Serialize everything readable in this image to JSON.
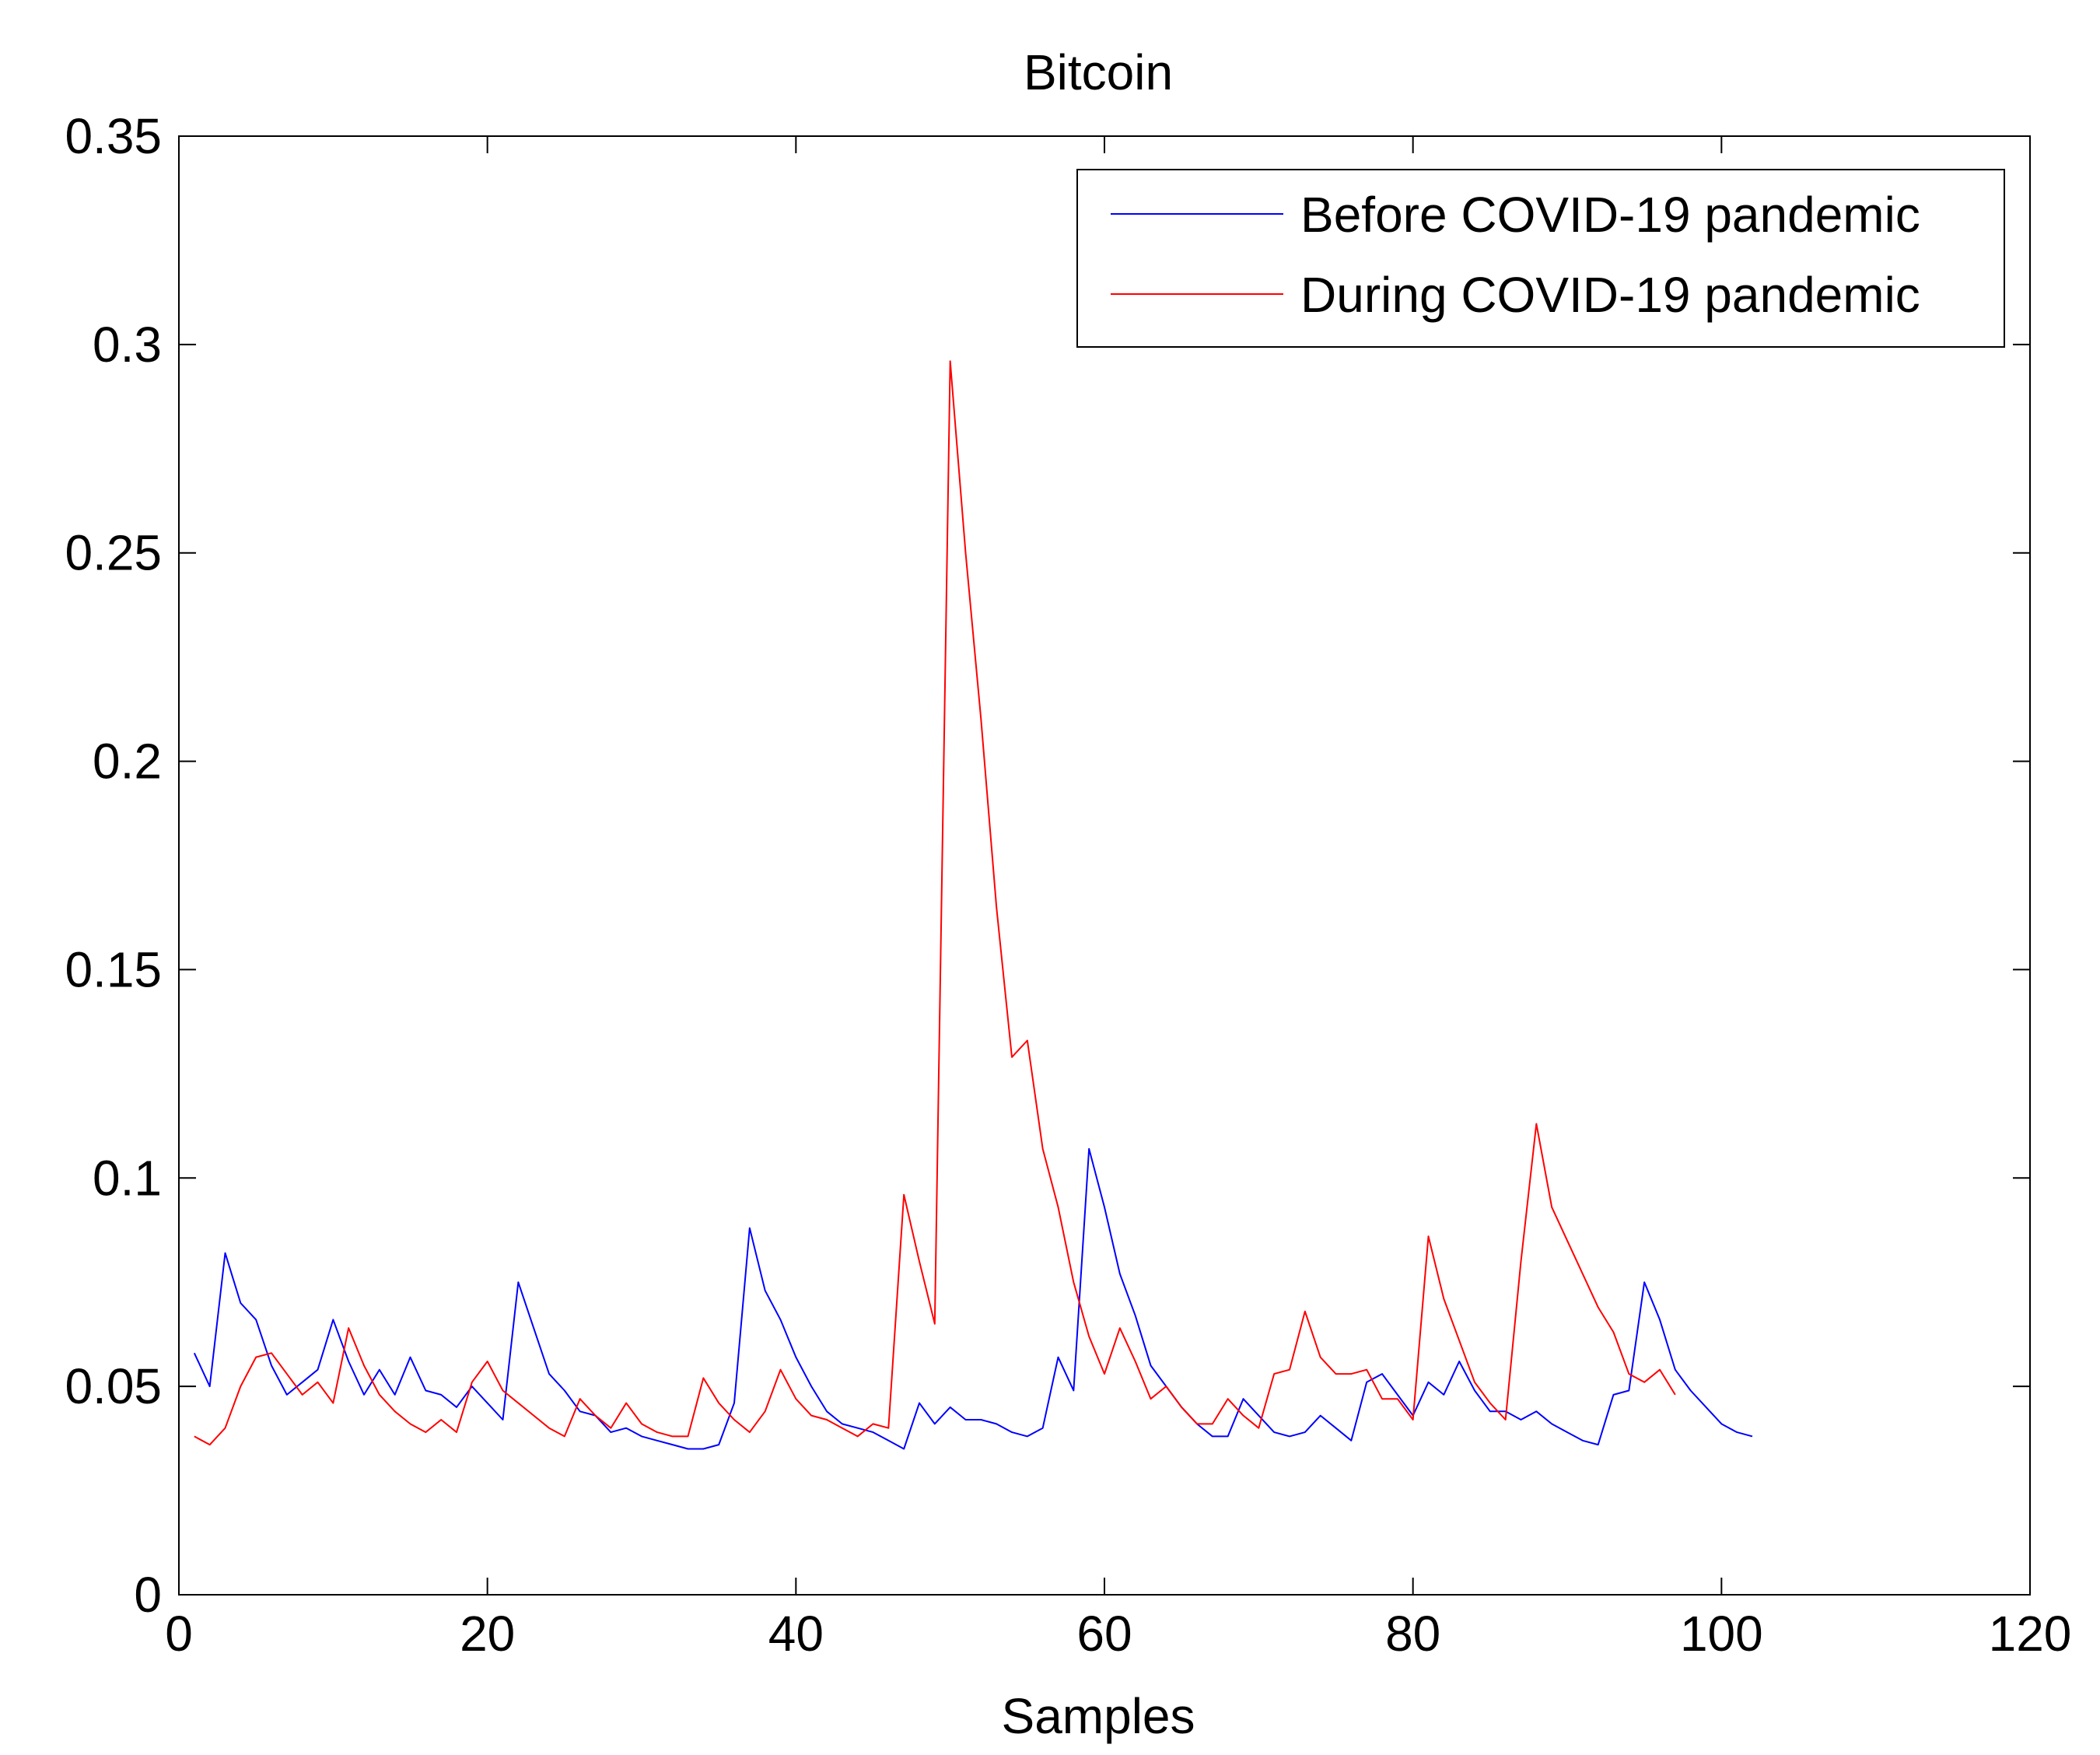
{
  "chart_data": {
    "type": "line",
    "title": "Bitcoin",
    "xlabel": "Samples",
    "ylabel": "",
    "xlim": [
      0,
      120
    ],
    "ylim": [
      0,
      0.35
    ],
    "xticks": [
      0,
      20,
      40,
      60,
      80,
      100,
      120
    ],
    "yticks": [
      0,
      0.05,
      0.1,
      0.15,
      0.2,
      0.25,
      0.3,
      0.35
    ],
    "xtick_labels": [
      "0",
      "20",
      "40",
      "60",
      "80",
      "100",
      "120"
    ],
    "ytick_labels": [
      "0",
      "0.05",
      "0.1",
      "0.15",
      "0.2",
      "0.25",
      "0.3",
      "0.35"
    ],
    "grid": false,
    "legend_position": "top-right",
    "series": [
      {
        "name": "Before COVID-19 pandemic",
        "color": "#0000ff",
        "x_start": 1,
        "values": [
          0.058,
          0.05,
          0.082,
          0.07,
          0.066,
          0.055,
          0.048,
          0.051,
          0.054,
          0.066,
          0.056,
          0.048,
          0.054,
          0.048,
          0.057,
          0.049,
          0.048,
          0.045,
          0.05,
          0.046,
          0.042,
          0.075,
          0.064,
          0.053,
          0.049,
          0.044,
          0.043,
          0.039,
          0.04,
          0.038,
          0.037,
          0.036,
          0.035,
          0.035,
          0.036,
          0.046,
          0.088,
          0.073,
          0.066,
          0.057,
          0.05,
          0.044,
          0.041,
          0.04,
          0.039,
          0.037,
          0.035,
          0.046,
          0.041,
          0.045,
          0.042,
          0.042,
          0.041,
          0.039,
          0.038,
          0.04,
          0.057,
          0.049,
          0.107,
          0.093,
          0.077,
          0.067,
          0.055,
          0.05,
          0.045,
          0.041,
          0.038,
          0.038,
          0.047,
          0.043,
          0.039,
          0.038,
          0.039,
          0.043,
          0.04,
          0.037,
          0.051,
          0.053,
          0.048,
          0.043,
          0.051,
          0.048,
          0.056,
          0.049,
          0.044,
          0.044,
          0.042,
          0.044,
          0.041,
          0.039,
          0.037,
          0.036,
          0.048,
          0.049,
          0.075,
          0.066,
          0.054,
          0.049,
          0.045,
          0.041,
          0.039,
          0.038
        ]
      },
      {
        "name": "During COVID-19 pandemic",
        "color": "#ff0000",
        "x_start": 1,
        "values": [
          0.038,
          0.036,
          0.04,
          0.05,
          0.057,
          0.058,
          0.053,
          0.048,
          0.051,
          0.046,
          0.064,
          0.055,
          0.048,
          0.044,
          0.041,
          0.039,
          0.042,
          0.039,
          0.051,
          0.056,
          0.049,
          0.046,
          0.043,
          0.04,
          0.038,
          0.047,
          0.043,
          0.04,
          0.046,
          0.041,
          0.039,
          0.038,
          0.038,
          0.052,
          0.046,
          0.042,
          0.039,
          0.044,
          0.054,
          0.047,
          0.043,
          0.042,
          0.04,
          0.038,
          0.041,
          0.04,
          0.096,
          0.08,
          0.065,
          0.296,
          0.25,
          0.21,
          0.165,
          0.129,
          0.133,
          0.107,
          0.093,
          0.075,
          0.062,
          0.053,
          0.064,
          0.056,
          0.047,
          0.05,
          0.045,
          0.041,
          0.041,
          0.047,
          0.043,
          0.04,
          0.053,
          0.054,
          0.068,
          0.057,
          0.053,
          0.053,
          0.054,
          0.047,
          0.047,
          0.042,
          0.086,
          0.071,
          0.061,
          0.051,
          0.046,
          0.042,
          0.08,
          0.113,
          0.093,
          0.085,
          0.077,
          0.069,
          0.063,
          0.053,
          0.051,
          0.054,
          0.048
        ]
      }
    ]
  }
}
